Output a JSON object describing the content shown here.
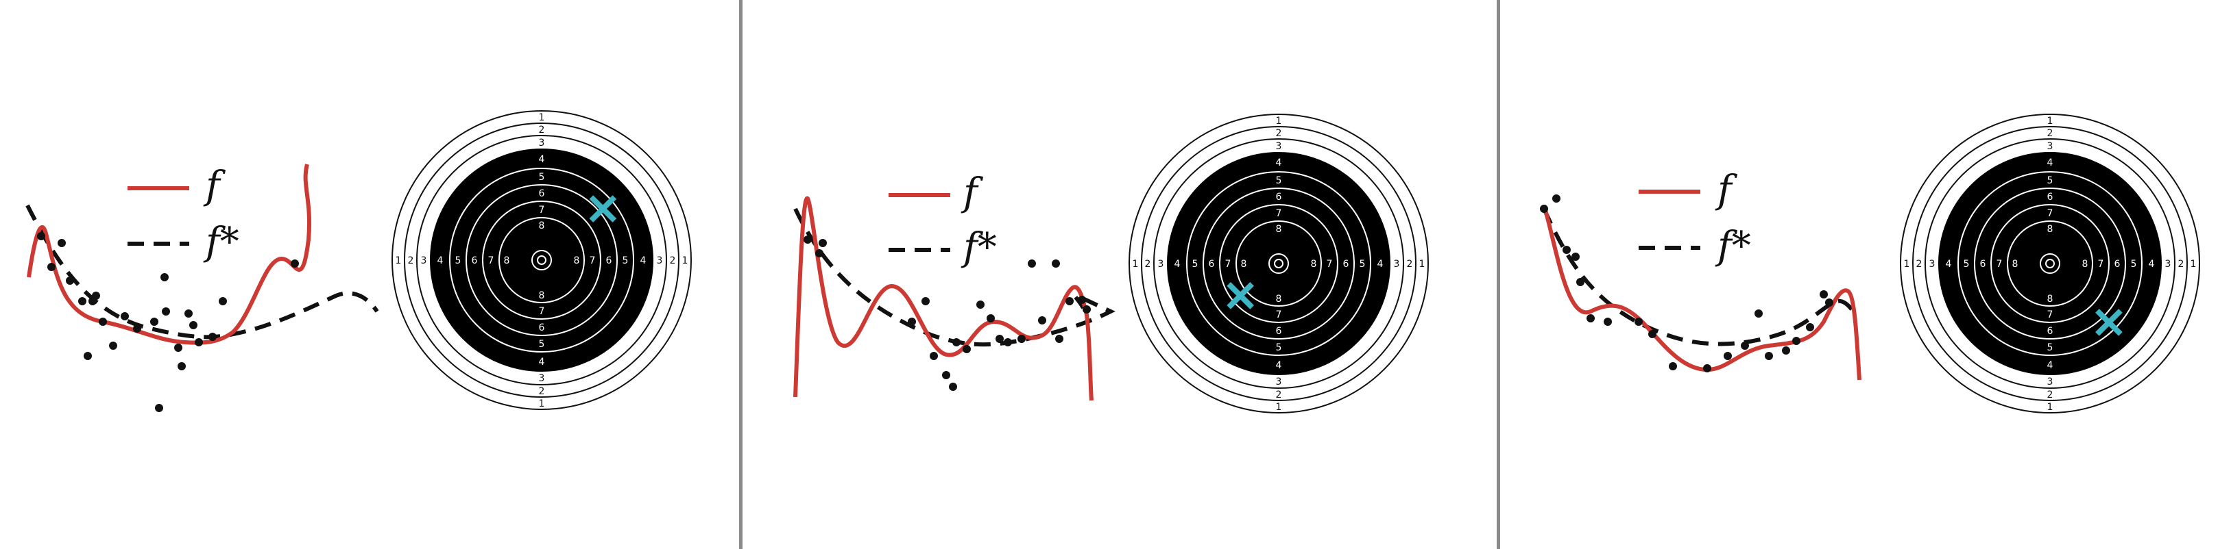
{
  "legend": {
    "model_label": "f",
    "true_label": "f*"
  },
  "colors": {
    "model": "#cc3a33",
    "true": "#111111",
    "points": "#111111",
    "shot": "#3db5c4",
    "target_black": "#000000",
    "target_line": "#111111"
  },
  "target": {
    "outer_ring_numbers": [
      "1",
      "2",
      "3"
    ],
    "inner_ring_numbers": [
      "4",
      "5",
      "6",
      "7",
      "8"
    ]
  },
  "panels": [
    {
      "name": "panel-1",
      "shot_direction_deg": -40,
      "shot_offset": 0.72
    },
    {
      "name": "panel-2",
      "shot_direction_deg": 140,
      "shot_offset": 0.45
    },
    {
      "name": "panel-3",
      "shot_direction_deg": 45,
      "shot_offset": 0.75
    }
  ]
}
